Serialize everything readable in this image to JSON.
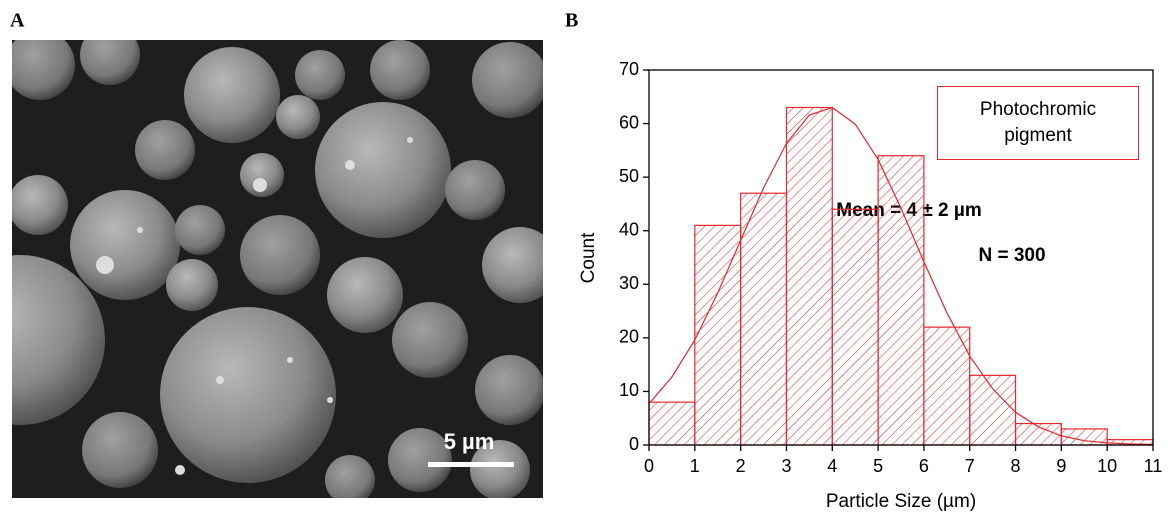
{
  "panels": {
    "a": {
      "label": "A",
      "scale_bar": "5 µm"
    },
    "b": {
      "label": "B"
    }
  },
  "chart_data": {
    "type": "histogram",
    "bins": [
      0,
      1,
      2,
      3,
      4,
      5,
      6,
      7,
      8,
      9,
      10,
      11
    ],
    "values": [
      8,
      41,
      47,
      63,
      44,
      54,
      22,
      13,
      4,
      3,
      1
    ],
    "color": "#e8262c",
    "fit": {
      "x": [
        0,
        0.5,
        1,
        1.5,
        2,
        2.5,
        3,
        3.5,
        4,
        4.5,
        5,
        5.5,
        6,
        6.5,
        7,
        7.5,
        8,
        8.5,
        9,
        9.5,
        10,
        10.5,
        11
      ],
      "y": [
        7.7,
        12.7,
        19.6,
        28.4,
        38.2,
        48.0,
        56.3,
        61.6,
        63,
        59.9,
        53.3,
        44.2,
        34.2,
        24.7,
        16.6,
        10.5,
        6.1,
        3.4,
        1.7,
        0.8,
        0.4,
        0.2,
        0.1
      ]
    },
    "xlabel": "Particle Size (µm)",
    "ylabel": "Count",
    "xlim": [
      0,
      11
    ],
    "xticks": [
      0,
      1,
      2,
      3,
      4,
      5,
      6,
      7,
      8,
      9,
      10,
      11
    ],
    "ylim": [
      0,
      70
    ],
    "yticks": [
      0,
      10,
      20,
      30,
      40,
      50,
      60,
      70
    ],
    "legend": {
      "name": "Photochromic pigment",
      "position": "upper right"
    },
    "annotations": [
      "Mean = 4 ± 2 µm",
      "N = 300"
    ]
  }
}
